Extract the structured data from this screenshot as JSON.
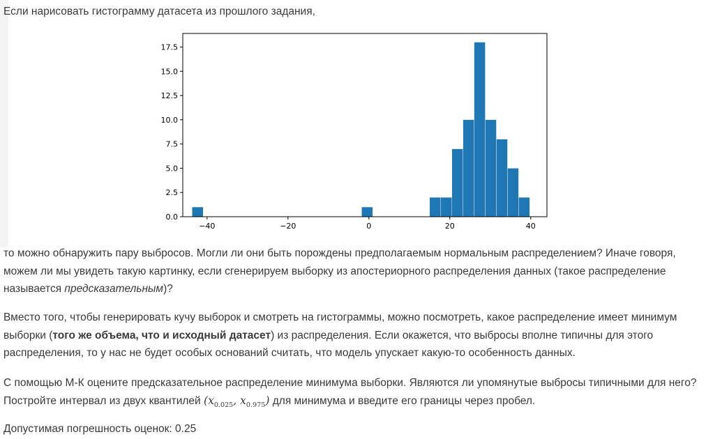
{
  "intro": "Если нарисовать гистограмму датасета из прошлого задания,",
  "p1": {
    "before": "то можно обнаружить пару выбросов. Могли ли они быть порождены предполагаемым нормальным распределением? Иначе говоря, можем ли мы увидеть такую картинку, если сгенерируем выборку из апостериорного распределения данных (такое распределение называется ",
    "em": "предсказательным",
    "after": ")?"
  },
  "p2": {
    "before": "Вместо того, чтобы генерировать кучу выборок и смотреть на гистограммы, можно посмотреть, какое распределение имеет минимум выборки (",
    "strong": "того же объема, что и исходный датасет",
    "after": ") из распределения. Если окажется, что выбросы вполне типичны для этого распределения, то у нас не будет особых оснований считать, что модель упускает какую-то особенность данных."
  },
  "p3": {
    "before": "С помощью М-К оцените предсказательное распределение минимума выборки. Являются ли упомянутые выбросы типичными для него? Постройте интервал из двух квантилей ",
    "math_open": "(",
    "math_x1": "x",
    "math_sub1": "0.025",
    "math_sep": ", ",
    "math_x2": "x",
    "math_sub2": "0.975",
    "math_close": ")",
    "after": " для минимума и введите его границы через пробел."
  },
  "p4": "Допустимая погрешность оценок: 0.25",
  "chart_data": {
    "type": "bar",
    "bar_color": "#1f77b4",
    "xlim": [
      -46,
      44
    ],
    "ylim": [
      0,
      18.9
    ],
    "xticks": [
      -40,
      -20,
      0,
      20,
      40
    ],
    "xtick_labels": [
      "−40",
      "−20",
      "0",
      "20",
      "40"
    ],
    "yticks": [
      0,
      2.5,
      5,
      7.5,
      10,
      12.5,
      15,
      17.5
    ],
    "ytick_labels": [
      "0.0",
      "2.5",
      "5.0",
      "7.5",
      "10.0",
      "12.5",
      "15.0",
      "17.5"
    ],
    "bin_width": 2.75,
    "bins": [
      {
        "left": -43.7,
        "count": 1
      },
      {
        "left": -1.8,
        "count": 1
      },
      {
        "left": 15.0,
        "count": 2
      },
      {
        "left": 17.75,
        "count": 2
      },
      {
        "left": 20.5,
        "count": 7
      },
      {
        "left": 23.25,
        "count": 10
      },
      {
        "left": 26.0,
        "count": 18
      },
      {
        "left": 28.75,
        "count": 10
      },
      {
        "left": 31.5,
        "count": 8
      },
      {
        "left": 34.25,
        "count": 5
      },
      {
        "left": 37.0,
        "count": 2
      }
    ]
  }
}
